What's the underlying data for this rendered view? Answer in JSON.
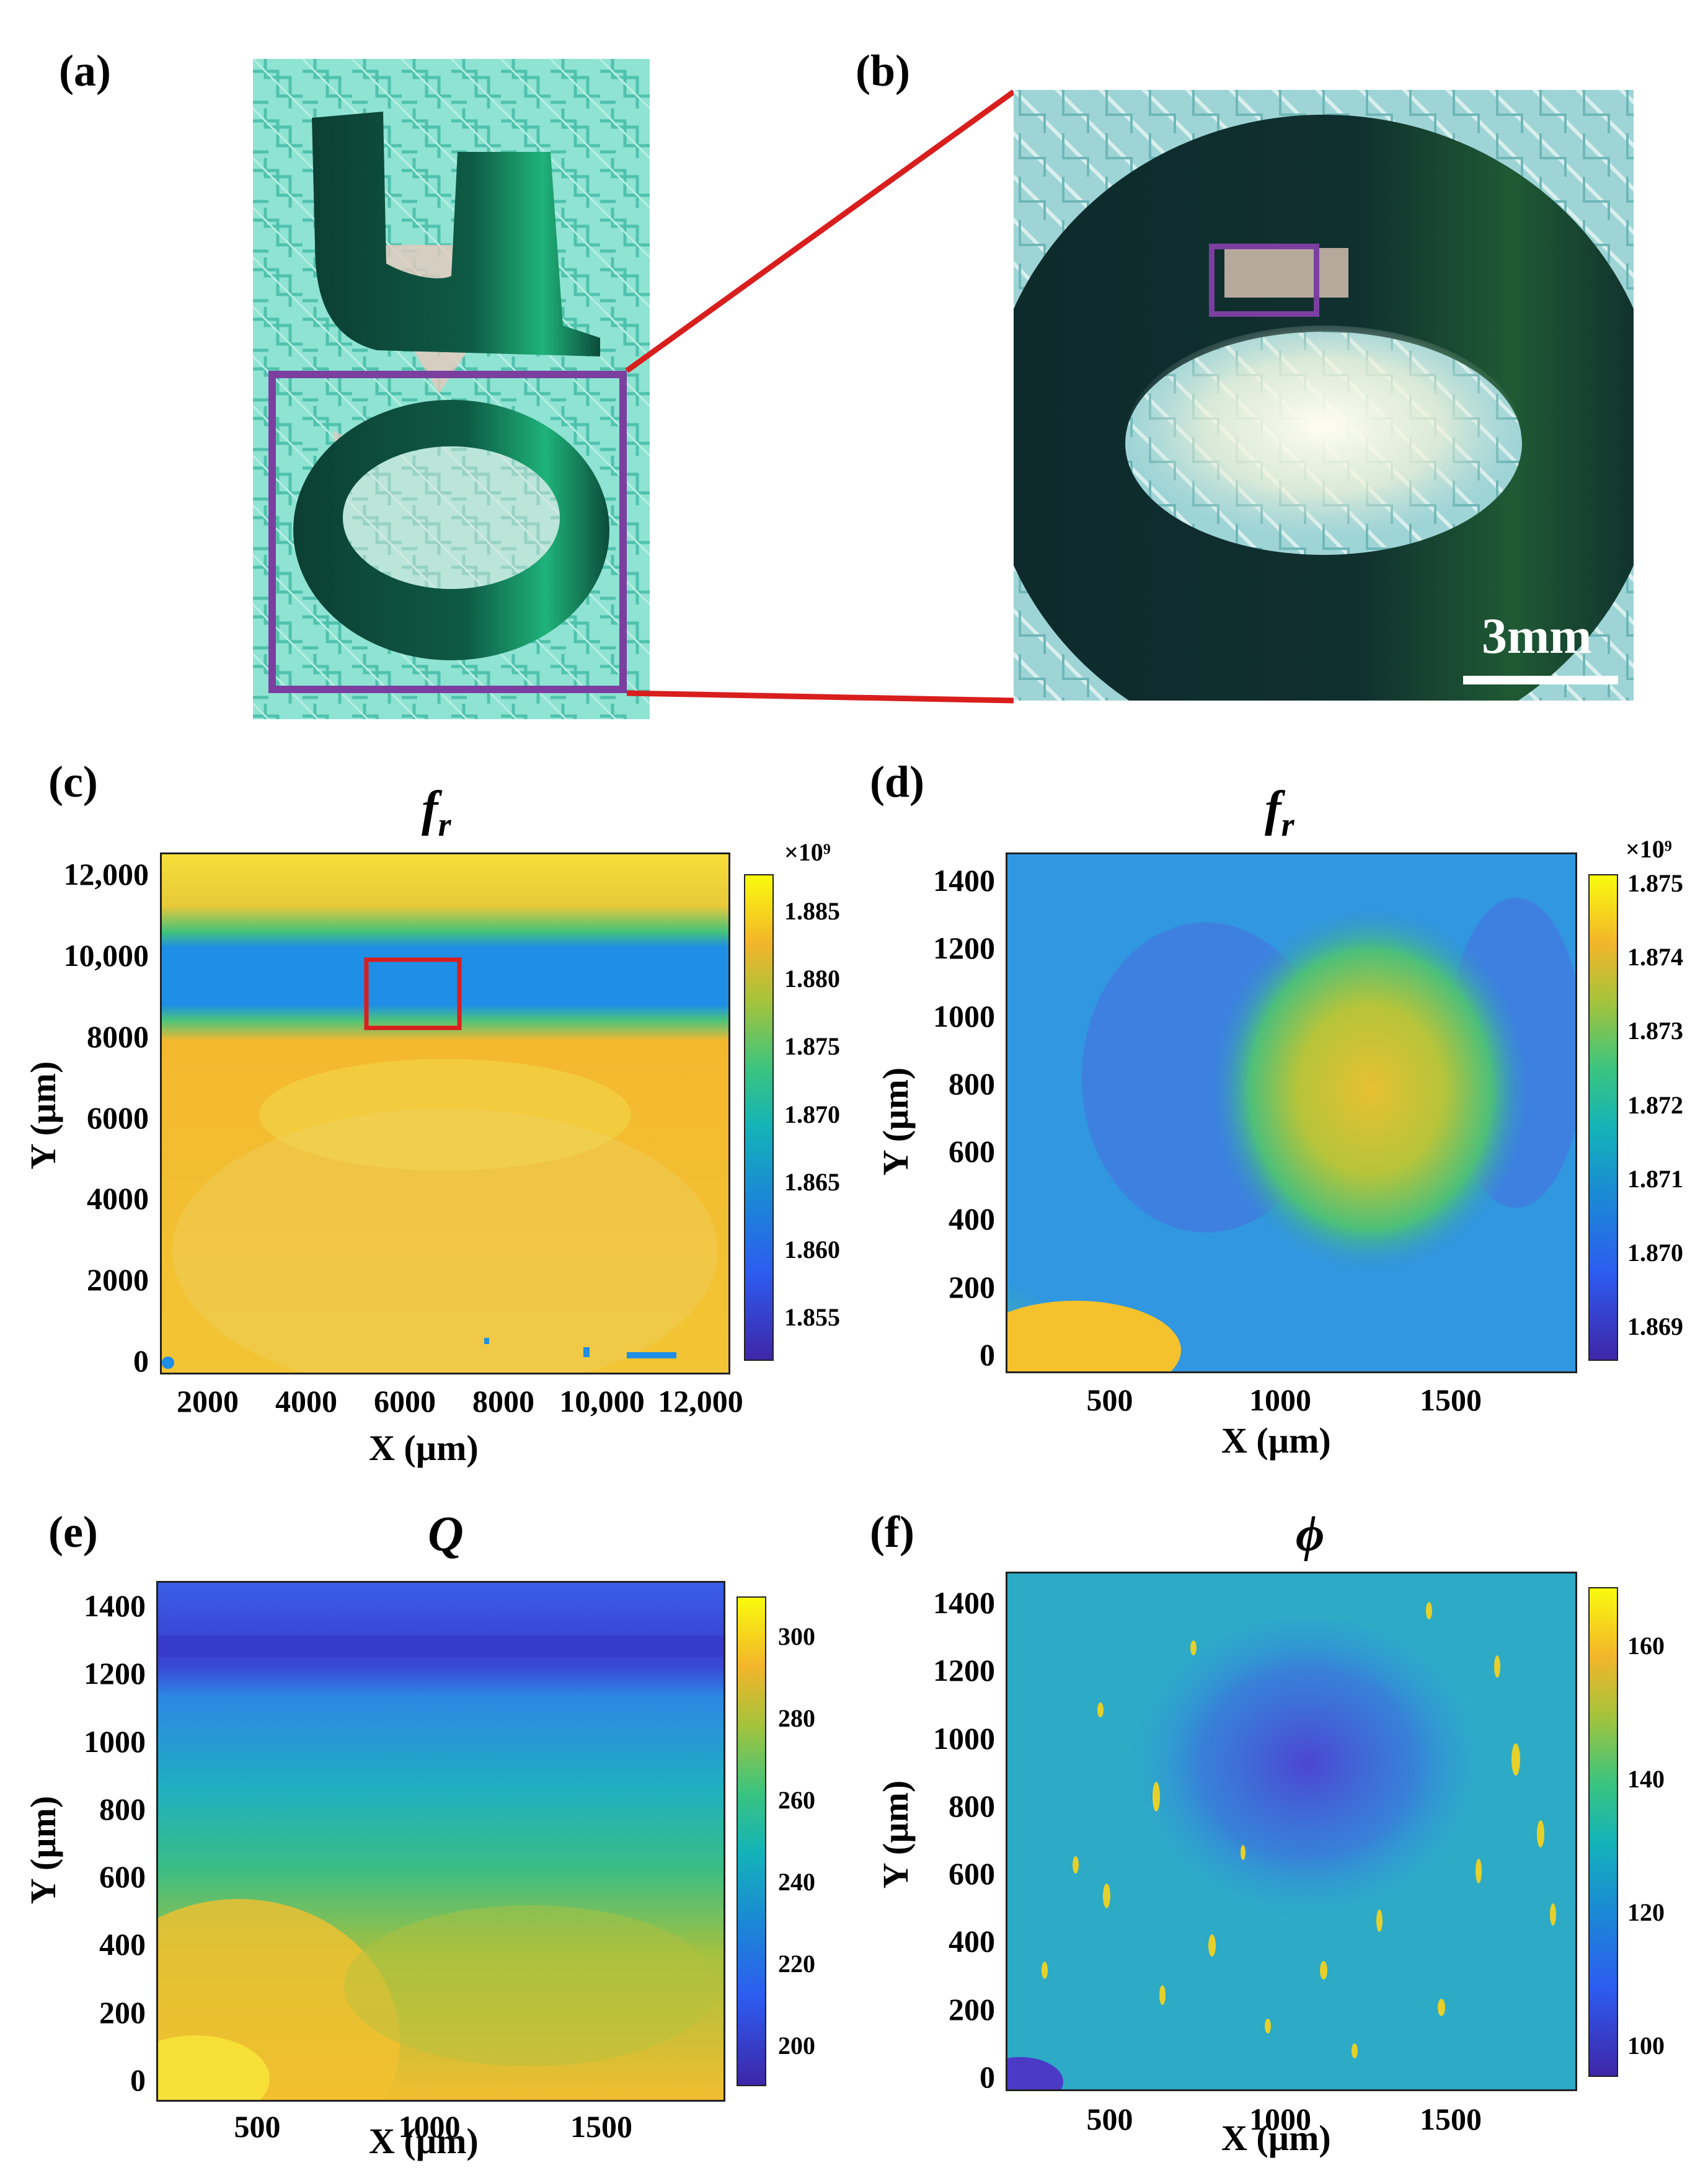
{
  "panels": {
    "a": {
      "label": "(a)"
    },
    "b": {
      "label": "(b)",
      "scale_bar": "3mm"
    },
    "c": {
      "label": "(c)"
    },
    "d": {
      "label": "(d)"
    },
    "e": {
      "label": "(e)"
    },
    "f": {
      "label": "(f)"
    }
  },
  "colors": {
    "zoom_line": "#d91e1e",
    "highlight_box_purple": "#7b3fa0",
    "highlight_box_red": "#d91e1e"
  },
  "chart_data": [
    {
      "id": "c",
      "type": "heatmap",
      "title_main": "f",
      "title_sub": "r",
      "xlabel": "X (µm)",
      "ylabel": "Y (µm)",
      "x_ticks": [
        "2000",
        "4000",
        "6000",
        "8000",
        "10,000",
        "12,000"
      ],
      "y_ticks": [
        "12,000",
        "10,000",
        "8000",
        "6000",
        "4000",
        "2000",
        "0"
      ],
      "colorbar_multiplier": "×10⁹",
      "colorbar_ticks": [
        "1.885",
        "1.880",
        "1.875",
        "1.870",
        "1.865",
        "1.860",
        "1.855"
      ]
    },
    {
      "id": "d",
      "type": "heatmap",
      "title_main": "f",
      "title_sub": "r",
      "xlabel": "X (µm)",
      "ylabel": "Y (µm)",
      "x_ticks": [
        "500",
        "1000",
        "1500"
      ],
      "y_ticks": [
        "1400",
        "1200",
        "1000",
        "800",
        "600",
        "400",
        "200",
        "0"
      ],
      "colorbar_multiplier": "×10⁹",
      "colorbar_ticks": [
        "1.875",
        "1.874",
        "1.873",
        "1.872",
        "1.871",
        "1.870",
        "1.869"
      ]
    },
    {
      "id": "e",
      "type": "heatmap",
      "title_main": "Q",
      "title_sub": "",
      "xlabel": "X (µm)",
      "ylabel": "Y (µm)",
      "x_ticks": [
        "500",
        "1000",
        "1500"
      ],
      "y_ticks": [
        "1400",
        "1200",
        "1000",
        "800",
        "600",
        "400",
        "200",
        "0"
      ],
      "colorbar_multiplier": "",
      "colorbar_ticks": [
        "300",
        "280",
        "260",
        "240",
        "220",
        "200"
      ]
    },
    {
      "id": "f",
      "type": "heatmap",
      "title_main": "ϕ",
      "title_sub": "",
      "xlabel": "X (µm)",
      "ylabel": "Y (µm)",
      "x_ticks": [
        "500",
        "1000",
        "1500"
      ],
      "y_ticks": [
        "1400",
        "1200",
        "1000",
        "800",
        "600",
        "400",
        "200",
        "0"
      ],
      "colorbar_multiplier": "",
      "colorbar_ticks": [
        "160",
        "140",
        "120",
        "100"
      ]
    }
  ]
}
